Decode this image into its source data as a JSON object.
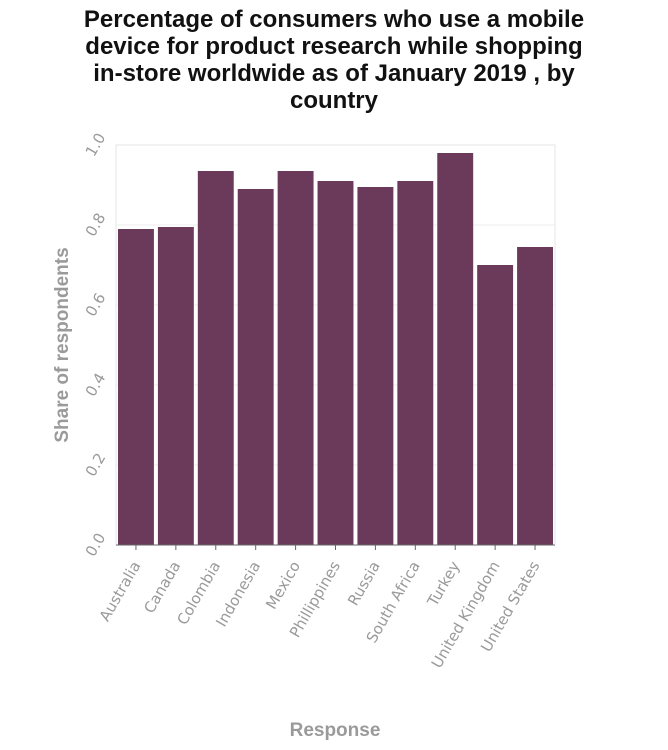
{
  "chart_data": {
    "type": "bar",
    "title_lines": [
      "Percentage of consumers who use a mobile",
      "device for product research while shopping",
      "in-store worldwide as of January 2019 , by",
      "country"
    ],
    "xlabel": "Response",
    "ylabel": "Share of respondents",
    "categories": [
      "Australia",
      "Canada",
      "Colombia",
      "Indonesia",
      "Mexico",
      "Phillippines",
      "Russia",
      "South Africa",
      "Turkey",
      "United Kingdom",
      "United States"
    ],
    "values": [
      0.79,
      0.795,
      0.935,
      0.89,
      0.935,
      0.91,
      0.895,
      0.91,
      0.98,
      0.7,
      0.745
    ],
    "yticks": [
      "0.0",
      "0.2",
      "0.4",
      "0.6",
      "0.8",
      "1.0"
    ],
    "ylim": [
      0,
      1.0
    ],
    "bar_color": "#6b3a5b",
    "grid": true,
    "legend": "none"
  }
}
